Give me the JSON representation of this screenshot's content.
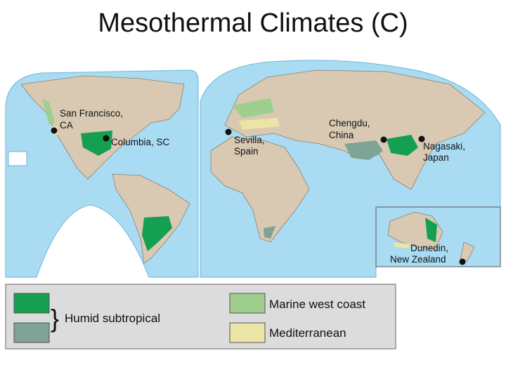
{
  "title": "Mesothermal Climates (C)",
  "cities": [
    {
      "label": [
        "San Francisco,",
        "CA"
      ]
    },
    {
      "label": [
        "Columbia, SC"
      ]
    },
    {
      "label": [
        "Sevilla,",
        "Spain"
      ]
    },
    {
      "label": [
        "Chengdu,",
        "China"
      ]
    },
    {
      "label": [
        "Nagasaki,",
        "Japan"
      ]
    },
    {
      "label": [
        "Dunedin,",
        "New Zealand"
      ]
    }
  ],
  "legend": {
    "humid_subtropical": "Humid subtropical",
    "marine_west_coast": "Marine west coast",
    "mediterranean": "Mediterranean"
  }
}
